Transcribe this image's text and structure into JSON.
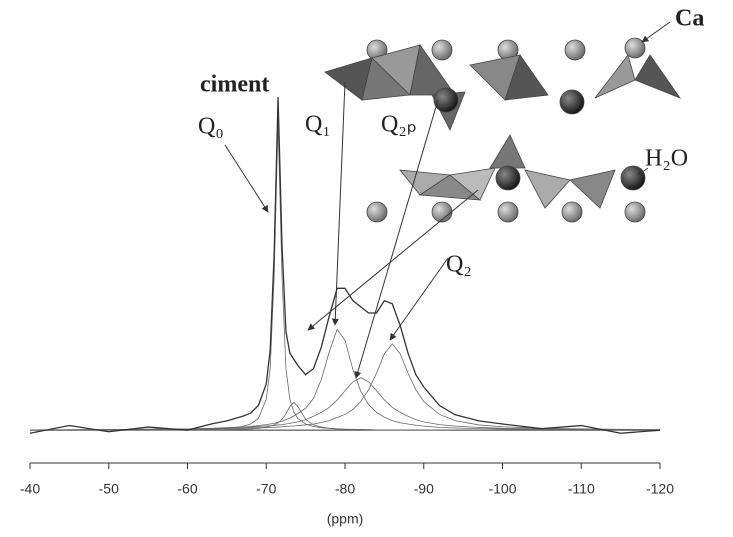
{
  "chart_data": {
    "type": "line",
    "x_label": "(ppm)",
    "xlim": [
      -40,
      -120
    ],
    "xticks": [
      -40,
      -50,
      -60,
      -70,
      -80,
      -90,
      -100,
      -110,
      -120
    ],
    "ylim": [
      -10,
      110
    ],
    "x": [
      -40,
      -45,
      -50,
      -55,
      -60,
      -63,
      -65,
      -67,
      -68,
      -69,
      -70,
      -70.5,
      -71,
      -71.5,
      -72,
      -72.5,
      -73,
      -73.5,
      -74,
      -75,
      -76,
      -77,
      -78,
      -79,
      -80,
      -81,
      -82,
      -83,
      -84,
      -85,
      -86,
      -87,
      -88,
      -89,
      -90,
      -92,
      -94,
      -97,
      -100,
      -105,
      -110,
      -115,
      -120
    ],
    "series": [
      {
        "color": "#333333",
        "values": [
          -1,
          1.5,
          -0.5,
          1,
          0,
          2,
          3,
          4.5,
          5.5,
          8,
          15,
          26,
          57,
          108,
          60,
          32,
          25,
          23,
          21,
          18,
          20,
          27,
          37,
          46,
          46,
          42,
          40,
          38,
          38,
          42,
          41,
          34,
          25,
          18,
          14,
          8,
          5,
          3,
          2,
          0.5,
          1.5,
          -1,
          0
        ]
      },
      {
        "color": "#666666",
        "values": [
          0,
          0,
          0.1,
          0.1,
          0.2,
          0.3,
          0.6,
          1.2,
          2,
          3.8,
          10,
          20,
          50,
          100,
          50,
          20,
          10,
          5.9,
          3.8,
          2,
          1.2,
          0.8,
          0.6,
          0.4,
          0.3,
          0.3,
          0.2,
          0.2,
          0.1,
          0.1,
          0.1,
          0.1,
          0.1,
          0.1,
          0.1,
          0.1,
          0,
          0,
          0,
          0,
          0,
          0,
          0
        ]
      },
      {
        "color": "#666666",
        "values": [
          0,
          0,
          0,
          0,
          0.1,
          0.1,
          0.2,
          0.3,
          0.4,
          0.6,
          1,
          1.3,
          1.7,
          2.4,
          3.5,
          5.3,
          7.7,
          9,
          7.7,
          3.5,
          1.7,
          1,
          0.6,
          0.4,
          0.3,
          0.2,
          0.2,
          0.1,
          0.1,
          0.1,
          0.1,
          0.1,
          0.1,
          0.1,
          0.1,
          0,
          0,
          0,
          0,
          0,
          0,
          0,
          0
        ]
      },
      {
        "color": "#666666",
        "values": [
          0.1,
          0.1,
          0.2,
          0.3,
          0.4,
          0.6,
          0.8,
          1,
          1.2,
          1.5,
          1.8,
          2,
          2.2,
          2.6,
          2.9,
          3.4,
          3.9,
          4.6,
          5.4,
          7.1,
          10.3,
          16.5,
          25.4,
          32.7,
          29.1,
          19.7,
          12.6,
          8.3,
          5.8,
          4.2,
          3.1,
          2.4,
          2,
          1.6,
          1.3,
          0.9,
          0.7,
          0.5,
          0.4,
          0.2,
          0.2,
          0.1,
          0.1
        ]
      },
      {
        "color": "#666666",
        "values": [
          0.1,
          0.15,
          0.2,
          0.3,
          0.4,
          0.5,
          0.7,
          0.9,
          1,
          1.2,
          1.4,
          1.4,
          1.5,
          1.7,
          1.8,
          2,
          2.2,
          2.5,
          2.7,
          3.4,
          4.5,
          5.8,
          7.4,
          9.8,
          12.8,
          15.7,
          17,
          15.7,
          12.8,
          9.8,
          7.4,
          5.8,
          4.5,
          3.4,
          2.7,
          1.8,
          1.3,
          0.9,
          0.6,
          0.4,
          0.3,
          0.2,
          0.1
        ]
      },
      {
        "color": "#666666",
        "values": [
          0.1,
          0.1,
          0.2,
          0.2,
          0.3,
          0.4,
          0.5,
          0.6,
          0.7,
          0.8,
          0.8,
          0.9,
          0.9,
          1,
          1.1,
          1.2,
          1.3,
          1.3,
          1.5,
          1.7,
          2,
          2.5,
          3.1,
          4.1,
          5.1,
          6.7,
          9.3,
          13.1,
          18.5,
          24.8,
          28,
          24.8,
          18.5,
          13.1,
          9.3,
          5.1,
          3.1,
          1.7,
          1.1,
          0.6,
          0.4,
          0.3,
          0.2
        ]
      }
    ],
    "annotations": [
      "ciment",
      "Q₀",
      "Q₁",
      "Q₂ₚ",
      "Q₂",
      "Ca",
      "H₂O"
    ]
  }
}
